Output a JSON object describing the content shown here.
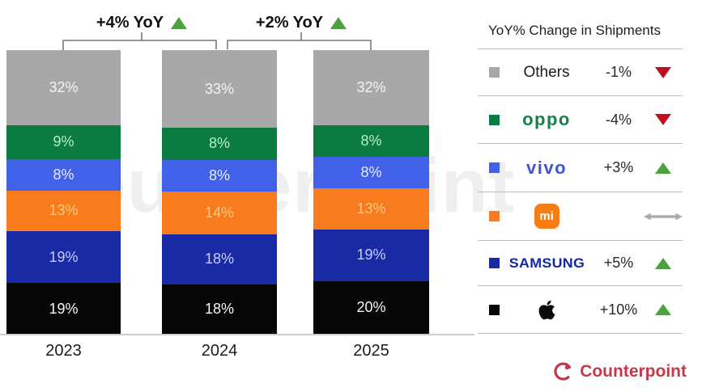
{
  "watermark": "Counterpoint",
  "annotations": [
    {
      "label": "+4% YoY",
      "trend": "up",
      "between": [
        "2023",
        "2024"
      ]
    },
    {
      "label": "+2% YoY",
      "trend": "up",
      "between": [
        "2024",
        "2025"
      ]
    }
  ],
  "chart_data": {
    "type": "bar",
    "stacked": true,
    "unit": "%",
    "categories": [
      "2023",
      "2024",
      "2025"
    ],
    "series": [
      {
        "name": "Others",
        "color": "#a8a8a8",
        "label_color": "#f4f4f4",
        "values": [
          32,
          33,
          32
        ]
      },
      {
        "name": "OPPO",
        "color": "#0b7b42",
        "label_color": "#b9edc8",
        "values": [
          9,
          8,
          8
        ]
      },
      {
        "name": "vivo",
        "color": "#4161e8",
        "label_color": "#e8ecff",
        "values": [
          8,
          8,
          8
        ]
      },
      {
        "name": "Xiaomi",
        "color": "#f87c1e",
        "label_color": "#ffc983",
        "values": [
          13,
          14,
          13
        ]
      },
      {
        "name": "Samsung",
        "color": "#1a2aa5",
        "label_color": "#c5cdfa",
        "values": [
          19,
          18,
          19
        ]
      },
      {
        "name": "Apple",
        "color": "#060606",
        "label_color": "#f7f7f7",
        "values": [
          19,
          18,
          20
        ]
      }
    ],
    "legend_position": "right",
    "grid": false
  },
  "legend": {
    "header": "YoY% Change in Shipments",
    "rows": [
      {
        "brand": "Others",
        "change": "-1%",
        "trend": "down"
      },
      {
        "brand": "oppo",
        "change": "-4%",
        "trend": "down"
      },
      {
        "brand": "vivo",
        "change": "+3%",
        "trend": "up"
      },
      {
        "brand": "mi",
        "change": "",
        "trend": "flat"
      },
      {
        "brand": "SAMSUNG",
        "change": "+5%",
        "trend": "up"
      },
      {
        "brand": "Apple",
        "change": "+10%",
        "trend": "up"
      }
    ]
  },
  "footer": {
    "brand": "Counterpoint"
  },
  "colors": {
    "trend_up_green": "#4ba33e",
    "trend_down_red": "#bf101f",
    "trend_flat_gray": "#ababab",
    "counterpoint_red": "#c4394a",
    "oppo_green": "#15804a",
    "vivo_blue": "#4054d4",
    "samsung_navy": "#1428a0",
    "xiaomi_orange": "#f87c14"
  }
}
